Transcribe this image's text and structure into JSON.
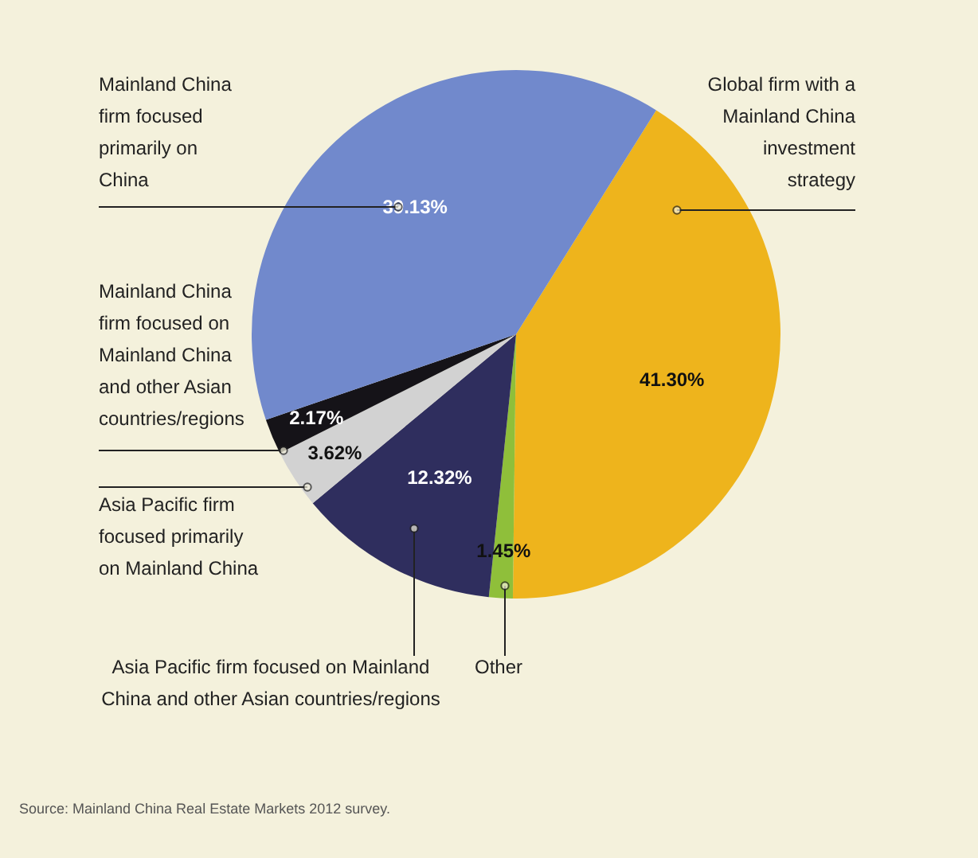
{
  "chart_data": {
    "type": "pie",
    "categories": [
      "Global firm with a Mainland China investment strategy",
      "Other",
      "Asia Pacific firm focused on Mainland China and other Asian countries/regions",
      "Asia Pacific firm focused primarily on Mainland China",
      "Mainland China firm focused on Mainland China and other Asian countries/regions",
      "Mainland China firm focused primarily on China"
    ],
    "values": [
      41.3,
      1.45,
      12.32,
      3.62,
      2.17,
      39.13
    ],
    "colors": [
      "#eeb41c",
      "#8fbf3a",
      "#2f2e5e",
      "#d2d2d2",
      "#151318",
      "#7189cc"
    ],
    "value_labels": [
      "41.30%",
      "1.45%",
      "12.32%",
      "3.62%",
      "2.17%",
      "39.13%"
    ],
    "annotations": [
      "Source: Mainland China Real Estate Markets 2012 survey."
    ]
  }
}
